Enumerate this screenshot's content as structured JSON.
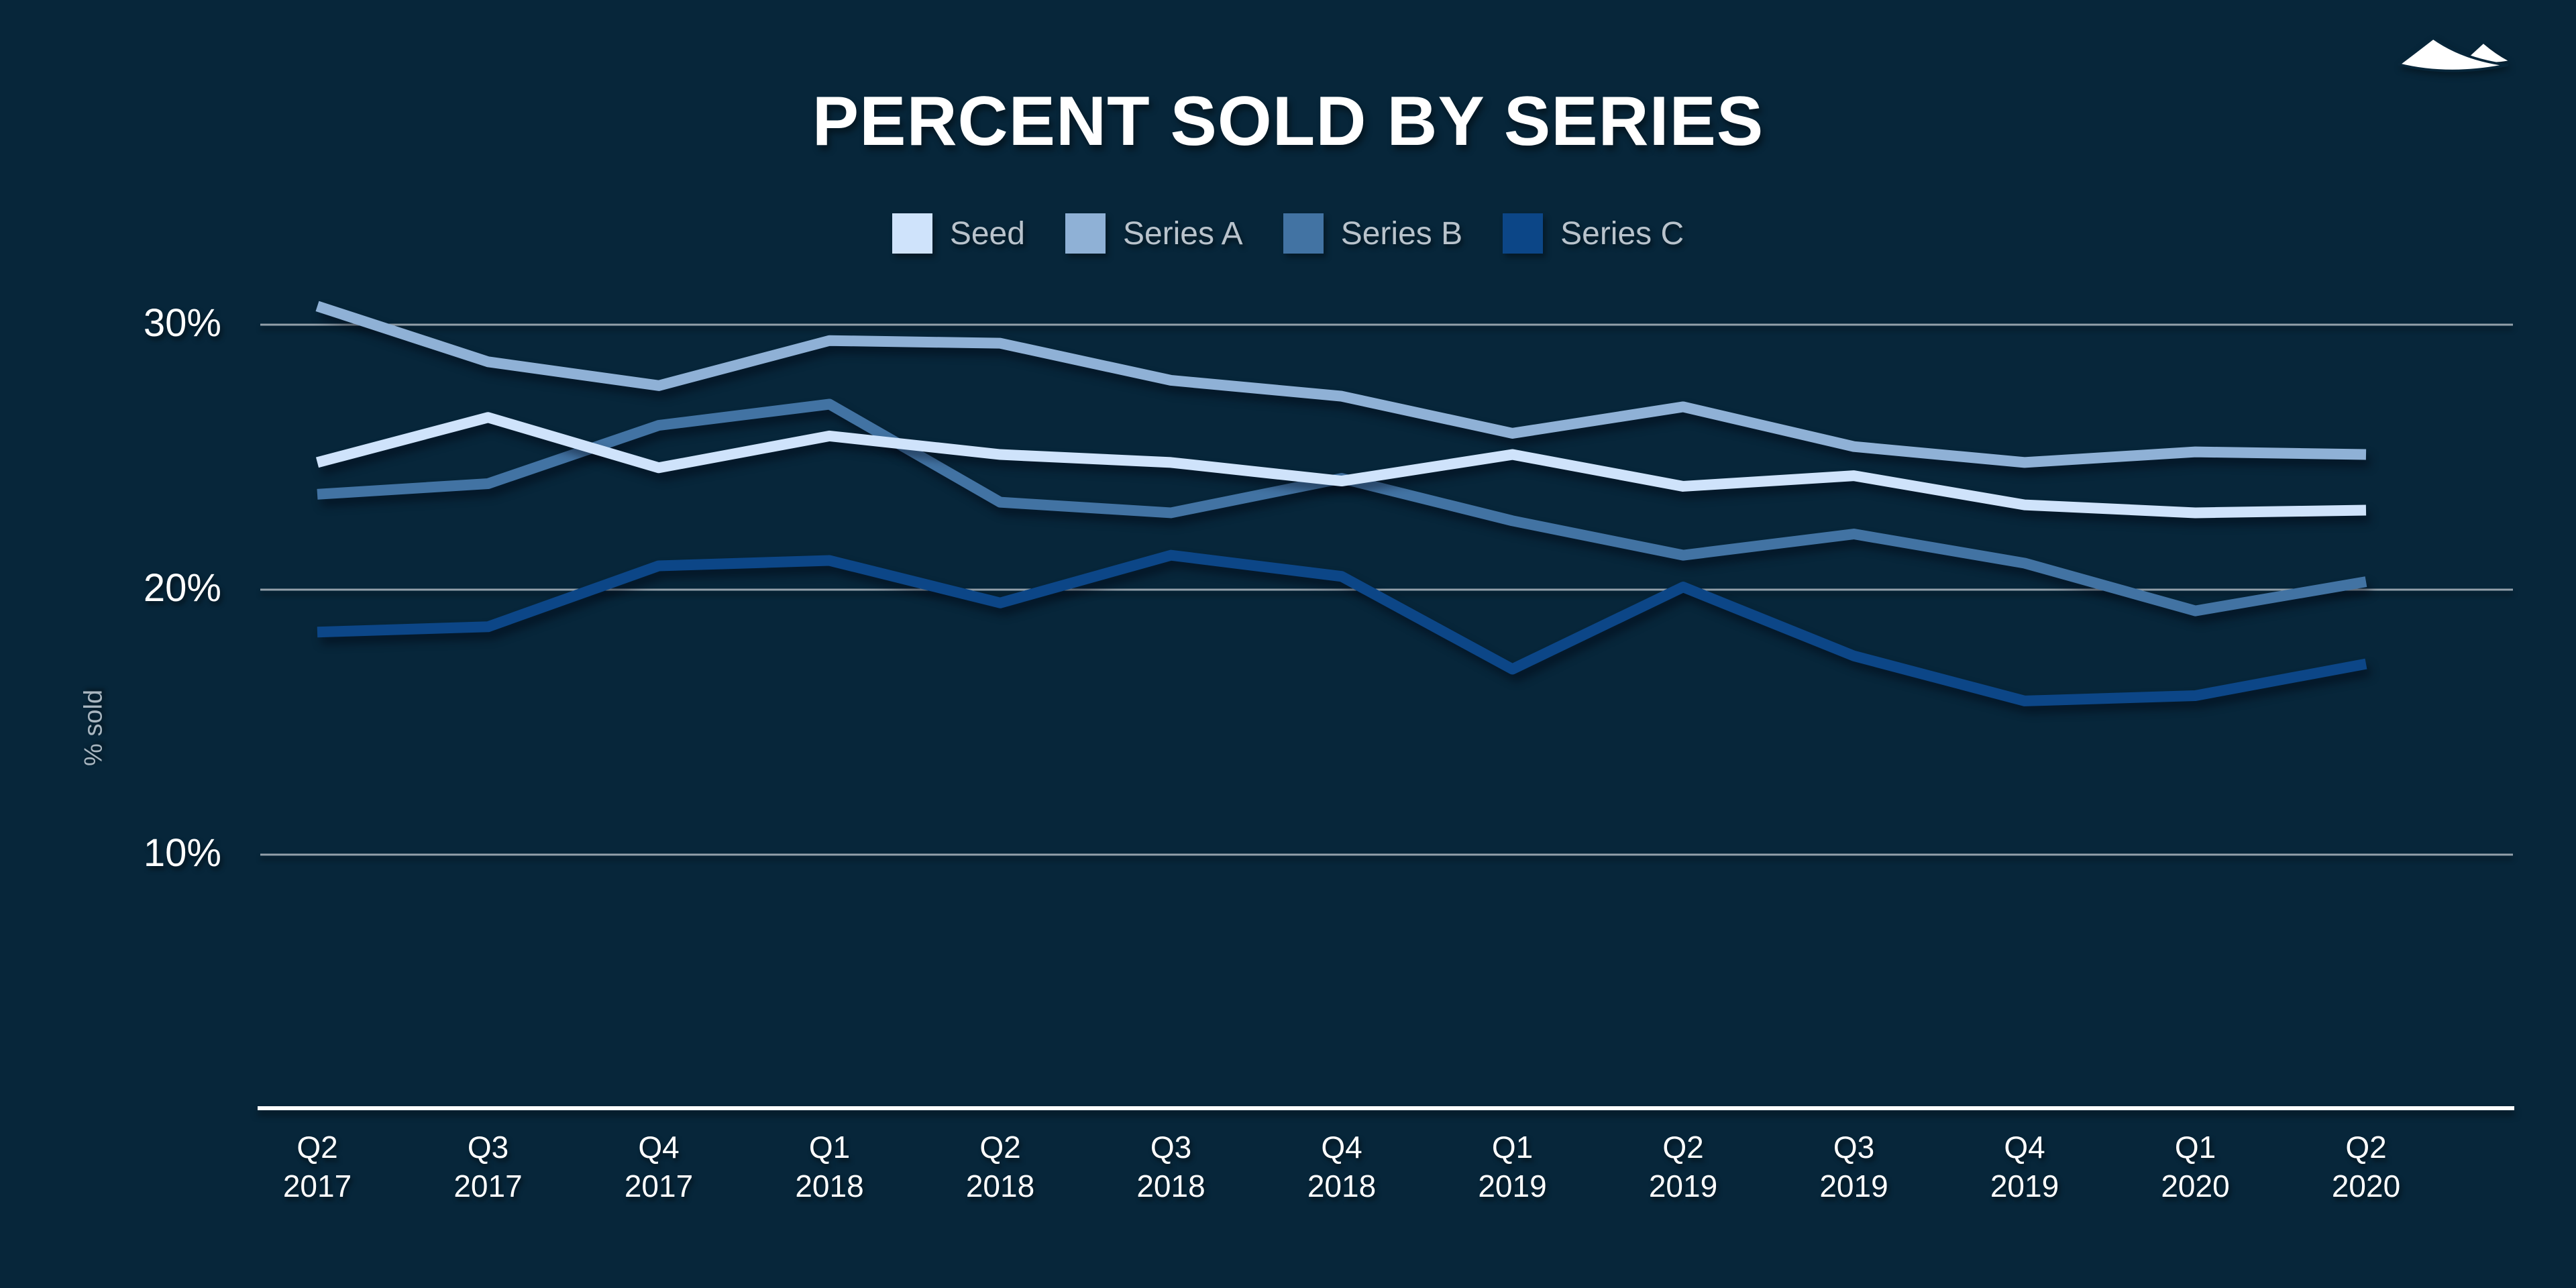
{
  "title": "PERCENT SOLD BY SERIES",
  "logo": {
    "icon": "mountain-logo",
    "color": "#ffffff"
  },
  "legend": {
    "items": [
      {
        "label": "Seed",
        "color": "#cfe3fb"
      },
      {
        "label": "Series A",
        "color": "#8fb1d6"
      },
      {
        "label": "Series B",
        "color": "#4273a3"
      },
      {
        "label": "Series C",
        "color": "#0c4687"
      }
    ]
  },
  "chart_data": {
    "type": "line",
    "title": "PERCENT SOLD BY SERIES",
    "xlabel": "",
    "ylabel": "% sold",
    "categories": [
      "Q2 2017",
      "Q3 2017",
      "Q4 2017",
      "Q1 2018",
      "Q2 2018",
      "Q3 2018",
      "Q4 2018",
      "Q1 2019",
      "Q2 2019",
      "Q3 2019",
      "Q4 2019",
      "Q1 2020",
      "Q2 2020"
    ],
    "series": [
      {
        "name": "Seed",
        "color": "#cfe3fb",
        "values": [
          24.8,
          26.5,
          24.6,
          25.8,
          25.1,
          24.8,
          24.1,
          25.1,
          23.9,
          24.3,
          23.2,
          22.9,
          23.0
        ]
      },
      {
        "name": "Series A",
        "color": "#8fb1d6",
        "values": [
          30.7,
          28.6,
          27.7,
          29.4,
          29.3,
          27.9,
          27.3,
          25.9,
          26.9,
          25.4,
          24.8,
          25.2,
          25.1
        ]
      },
      {
        "name": "Series B",
        "color": "#4273a3",
        "values": [
          23.6,
          24.0,
          26.2,
          27.0,
          23.3,
          22.9,
          24.2,
          22.6,
          21.3,
          22.1,
          21.0,
          19.2,
          20.3
        ]
      },
      {
        "name": "Series C",
        "color": "#0c4687",
        "values": [
          18.4,
          18.6,
          20.9,
          21.1,
          19.5,
          21.3,
          20.5,
          17.0,
          20.1,
          17.5,
          15.8,
          16.0,
          17.2
        ]
      }
    ],
    "yticks": [
      {
        "label": "30%",
        "value": 30
      },
      {
        "label": "20%",
        "value": 20
      },
      {
        "label": "10%",
        "value": 10
      }
    ],
    "ylim": [
      0,
      32
    ],
    "grid": "horizontal",
    "legend_position": "top"
  },
  "colors": {
    "background": "#07263a",
    "grid": "#93a0aa",
    "axis": "#ffffff",
    "tick_text": "#ffffff",
    "y_title_text": "#a9b6c0",
    "legend_text": "#b9c3cc"
  }
}
